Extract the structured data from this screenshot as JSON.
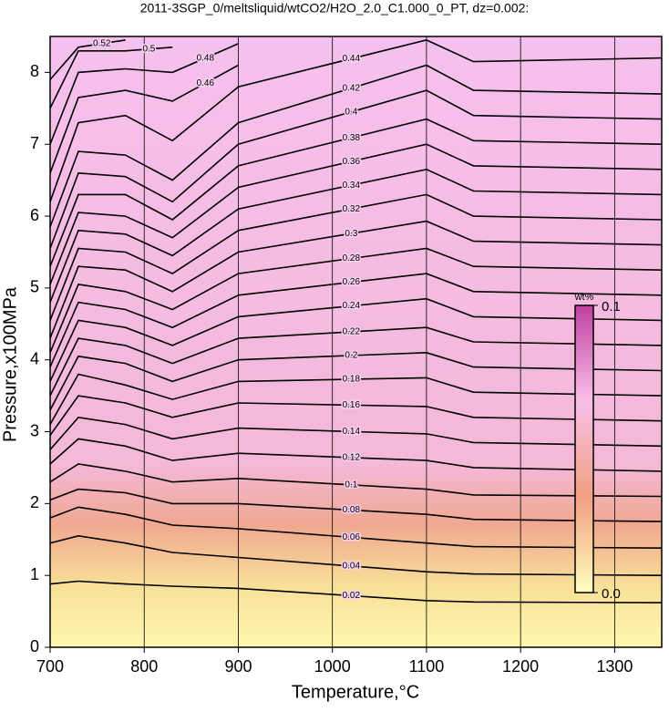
{
  "chart_data": {
    "type": "contour",
    "title": "2011-3SGP_0/meltsliquid/wtCO2/H2O_2.0_C1.000_0_PT, dz=0.002:",
    "x_label": "Temperature,°C",
    "y_label": "Pressure,x100MPa",
    "xlim": [
      700,
      1350
    ],
    "ylim": [
      0,
      8.5
    ],
    "xticks": [
      700,
      800,
      900,
      1000,
      1100,
      1200,
      1300
    ],
    "yticks": [
      0,
      1,
      2,
      3,
      4,
      5,
      6,
      7,
      8
    ],
    "grid": true,
    "line_color": "#000000",
    "colorbar": {
      "label": "wt%",
      "clim": [
        0,
        0.1
      ],
      "ticks": [
        {
          "value": 0,
          "label": "0.0"
        },
        {
          "value": 0.1,
          "label": "0.1"
        }
      ],
      "colors": [
        "#ffffc0",
        "#f0a080",
        "#f8c0e8",
        "#c040a0"
      ]
    },
    "contour_x": [
      700,
      730,
      780,
      830,
      900,
      1100,
      1150,
      1350
    ],
    "contours": [
      {
        "level": 0.02,
        "y": [
          0.88,
          0.92,
          0.88,
          0.85,
          0.82,
          0.65,
          0.63,
          0.62
        ]
      },
      {
        "level": 0.04,
        "y": [
          1.45,
          1.55,
          1.45,
          1.32,
          1.25,
          1.05,
          1.02,
          1.0
        ]
      },
      {
        "level": 0.06,
        "y": [
          1.8,
          1.95,
          1.85,
          1.7,
          1.65,
          1.45,
          1.4,
          1.38
        ]
      },
      {
        "level": 0.08,
        "y": [
          2.05,
          2.2,
          2.15,
          2.0,
          2.0,
          1.85,
          1.78,
          1.75
        ]
      },
      {
        "level": 0.1,
        "y": [
          2.3,
          2.55,
          2.45,
          2.3,
          2.35,
          2.2,
          2.12,
          2.1
        ]
      },
      {
        "level": 0.12,
        "y": [
          2.55,
          2.9,
          2.8,
          2.6,
          2.7,
          2.6,
          2.5,
          2.45
        ]
      },
      {
        "level": 0.14,
        "y": [
          2.75,
          3.2,
          3.1,
          2.9,
          3.05,
          2.97,
          2.85,
          2.8
        ]
      },
      {
        "level": 0.16,
        "y": [
          2.95,
          3.5,
          3.4,
          3.2,
          3.4,
          3.35,
          3.2,
          3.15
        ]
      },
      {
        "level": 0.18,
        "y": [
          3.1,
          3.8,
          3.65,
          3.45,
          3.7,
          3.75,
          3.55,
          3.5
        ]
      },
      {
        "level": 0.2,
        "y": [
          3.3,
          4.05,
          3.95,
          3.7,
          4.0,
          4.1,
          3.9,
          3.85
        ]
      },
      {
        "level": 0.22,
        "y": [
          3.5,
          4.3,
          4.2,
          3.95,
          4.3,
          4.45,
          4.25,
          4.2
        ]
      },
      {
        "level": 0.24,
        "y": [
          3.7,
          4.55,
          4.45,
          4.2,
          4.6,
          4.85,
          4.6,
          4.55
        ]
      },
      {
        "level": 0.26,
        "y": [
          3.9,
          4.8,
          4.7,
          4.45,
          4.9,
          5.2,
          4.95,
          4.9
        ]
      },
      {
        "level": 0.28,
        "y": [
          4.1,
          5.05,
          4.95,
          4.7,
          5.2,
          5.55,
          5.3,
          5.25
        ]
      },
      {
        "level": 0.3,
        "y": [
          4.3,
          5.3,
          5.25,
          4.95,
          5.5,
          5.93,
          5.65,
          5.6
        ]
      },
      {
        "level": 0.32,
        "y": [
          4.55,
          5.55,
          5.5,
          5.2,
          5.8,
          6.3,
          6.0,
          5.95
        ]
      },
      {
        "level": 0.34,
        "y": [
          4.8,
          5.8,
          5.75,
          5.45,
          6.1,
          6.65,
          6.35,
          6.3
        ]
      },
      {
        "level": 0.36,
        "y": [
          5.05,
          6.05,
          6.0,
          5.7,
          6.4,
          7.0,
          6.7,
          6.65
        ]
      },
      {
        "level": 0.38,
        "y": [
          5.3,
          6.3,
          6.3,
          5.95,
          6.7,
          7.35,
          7.05,
          7.0
        ]
      },
      {
        "level": 0.4,
        "y": [
          5.55,
          6.6,
          6.55,
          6.2,
          7.0,
          7.75,
          7.4,
          7.35
        ]
      },
      {
        "level": 0.42,
        "y": [
          5.85,
          6.9,
          6.85,
          6.5,
          7.3,
          8.1,
          7.75,
          7.7
        ]
      },
      {
        "level": 0.44,
        "y": [
          6.2,
          7.3,
          7.4,
          7.05,
          7.8,
          8.45,
          8.15,
          8.2
        ]
      },
      {
        "level": 0.46,
        "y": [
          6.6,
          7.65,
          7.75,
          7.6,
          8.1,
          null,
          null,
          null
        ]
      },
      {
        "level": 0.48,
        "y": [
          7.0,
          8.0,
          8.05,
          8.0,
          8.4,
          null,
          null,
          null
        ]
      },
      {
        "level": 0.5,
        "y": [
          7.5,
          8.3,
          8.3,
          8.35,
          null,
          null,
          null,
          null
        ]
      },
      {
        "level": 0.52,
        "y": [
          7.9,
          8.35,
          8.45,
          null,
          null,
          null,
          null,
          null
        ]
      }
    ]
  }
}
